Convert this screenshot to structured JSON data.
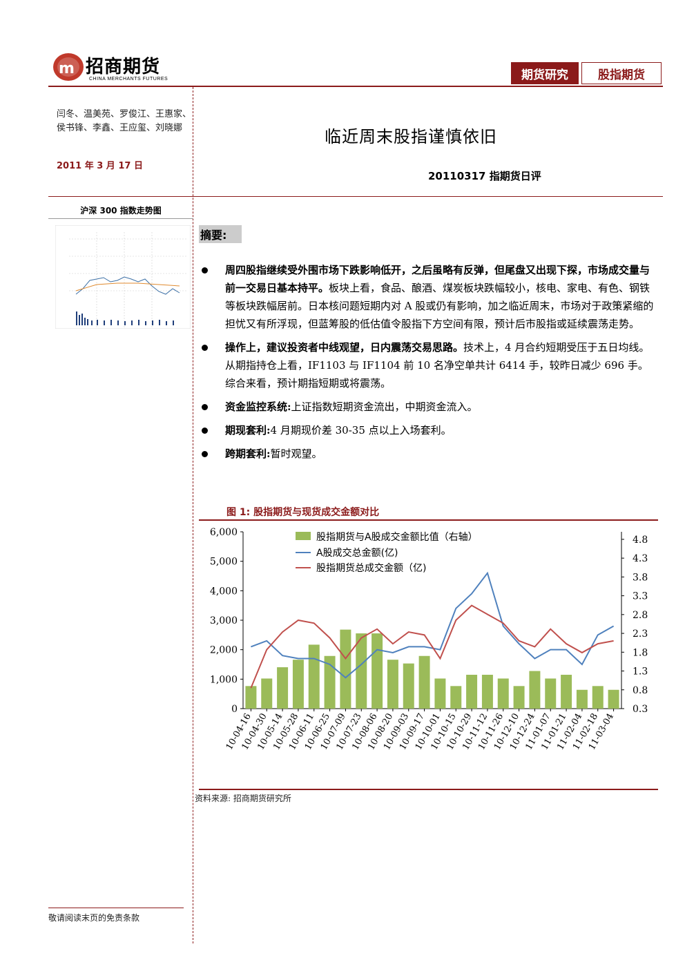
{
  "header": {
    "logo_cn": "招商期货",
    "logo_en": "CHINA MERCHANTS FUTURES",
    "tag_research": "期货研究",
    "tag_category": "股指期货"
  },
  "sidebar": {
    "authors": "闫冬、温美苑、罗俊江、王惠家、侯书锋、李鑫、王应玺、刘晓娜",
    "date": "2011 年 3 月 17 日",
    "chart_caption": "沪深 300 指数走势图"
  },
  "report": {
    "title": "临近周末股指谨慎依旧",
    "subtitle": "20110317 指期货日评",
    "summary_label": "摘要:",
    "bullets": [
      {
        "bold": "周四股指继续受外围市场下跌影响低开，之后虽略有反弹，但尾盘又出现下探，市场成交量与前一交易日基本持平。",
        "text": "板块上看，食品、酿酒、煤炭板块跌幅较小，核电、家电、有色、钢铁等板块跌幅居前。日本核问题短期内对 A 股或仍有影响，加之临近周末，市场对于政策紧缩的担忧又有所浮现，但蓝筹股的低估值令股指下方空间有限，预计后市股指或延续震荡走势。"
      },
      {
        "bold": "操作上，建议投资者中线观望，日内震荡交易思路。",
        "text": "技术上，4 月合约短期受压于五日均线。从期指持仓上看，IF1103 与 IF1104 前 10 名净空单共计 6414 手，较昨日减少 696 手。综合来看，预计期指短期或将震荡。"
      },
      {
        "bold": "资金监控系统:",
        "text": "上证指数短期资金流出，中期资金流入。"
      },
      {
        "bold": "期现套利:",
        "text": "4 月期现价差 30-35 点以上入场套利。"
      },
      {
        "bold": "跨期套利:",
        "text": "暂时观望。"
      }
    ],
    "figure_title": "图 1:  股指期货与现货成交金额对比",
    "source": "资料来源:  招商期货研究所"
  },
  "footer": {
    "disclaimer": "敬请阅读末页的免责条款"
  },
  "colors": {
    "brand": "#8b1a1a",
    "bars": "#9bbb59",
    "stock_line": "#4f81bd",
    "futures_line": "#c0504d"
  },
  "chart_data": {
    "type": "bar+line",
    "categories": [
      "10-04-16",
      "10-04-30",
      "10-05-14",
      "10-05-28",
      "10-06-11",
      "10-06-25",
      "10-07-09",
      "10-07-23",
      "10-08-06",
      "10-08-20",
      "10-09-03",
      "10-09-17",
      "10-10-01",
      "10-10-15",
      "10-10-29",
      "10-11-12",
      "10-11-26",
      "10-12-10",
      "10-12-24",
      "11-01-07",
      "11-01-21",
      "11-02-04",
      "11-02-18",
      "11-03-04"
    ],
    "y_left": {
      "ticks": [
        "0",
        "1,000",
        "2,000",
        "3,000",
        "4,000",
        "5,000",
        "6,000"
      ],
      "range": [
        0,
        6000
      ]
    },
    "y_right": {
      "ticks": [
        "0.3",
        "0.8",
        "1.3",
        "1.8",
        "2.3",
        "2.8",
        "3.3",
        "3.8",
        "4.3",
        "4.8"
      ],
      "range": [
        0.3,
        5.0
      ]
    },
    "series": [
      {
        "name": "股指期货与A股成交金额比值（右轴）",
        "type": "bar",
        "axis": "right",
        "values": [
          0.9,
          1.1,
          1.4,
          1.6,
          2.0,
          1.7,
          2.4,
          2.3,
          2.3,
          1.6,
          1.5,
          1.7,
          1.1,
          0.9,
          1.2,
          1.2,
          1.1,
          0.9,
          1.3,
          1.1,
          1.2,
          0.8,
          0.9,
          0.8
        ]
      },
      {
        "name": "A股成交总金额(亿)",
        "type": "line",
        "axis": "left",
        "values": [
          2100,
          2300,
          1800,
          1700,
          1700,
          1500,
          1050,
          1500,
          2000,
          1900,
          2100,
          2100,
          2000,
          3400,
          3900,
          4600,
          2800,
          2200,
          1700,
          2000,
          2000,
          1500,
          2500,
          2800
        ]
      },
      {
        "name": "股指期货总成交金额（亿)",
        "type": "line",
        "axis": "left",
        "values": [
          700,
          2000,
          2600,
          3000,
          2900,
          2400,
          1700,
          2400,
          2700,
          2200,
          2600,
          2500,
          1700,
          3000,
          3500,
          3200,
          2900,
          2300,
          2100,
          2700,
          2200,
          1900,
          2200,
          2300
        ]
      }
    ]
  }
}
